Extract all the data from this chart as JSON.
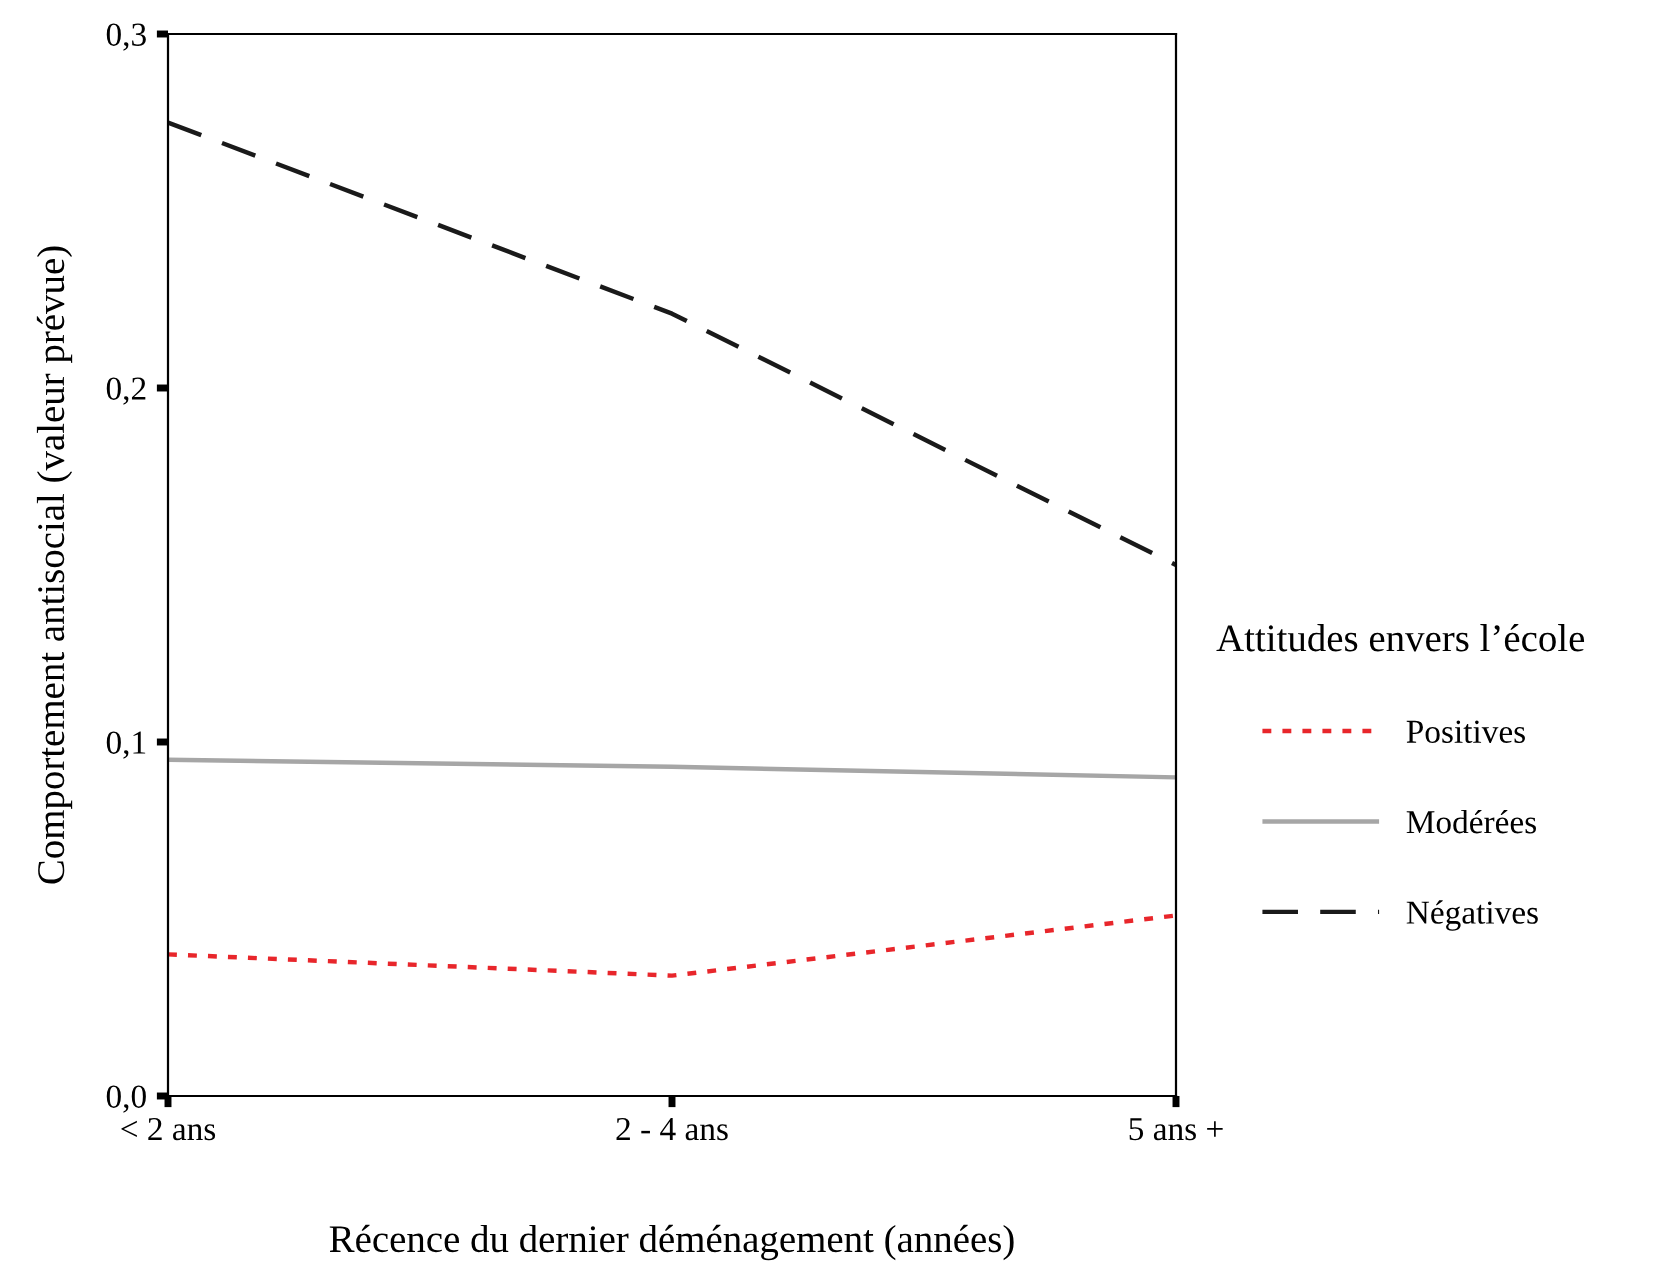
{
  "chart_data": {
    "type": "line",
    "xlabel": "Récence du dernier déménagement (années)",
    "ylabel": "Comportement antisocial (valeur prévue)",
    "legend_title": "Attitudes envers l’école",
    "categories": [
      "< 2 ans",
      "2 - 4 ans",
      "5 ans +"
    ],
    "series": [
      {
        "name": "Positives",
        "color": "#e8262b",
        "line_style": "dotted",
        "values": [
          0.04,
          0.034,
          0.051
        ]
      },
      {
        "name": "Modérées",
        "color": "#a6a6a6",
        "line_style": "solid",
        "values": [
          0.095,
          0.093,
          0.09
        ]
      },
      {
        "name": "Négatives",
        "color": "#1a1a1a",
        "line_style": "dashed",
        "values": [
          0.275,
          0.221,
          0.15
        ]
      }
    ],
    "ylim": [
      0,
      0.3
    ],
    "yticks": [
      {
        "value": 0,
        "label": "0,0"
      },
      {
        "value": 0.1,
        "label": "0,1"
      },
      {
        "value": 0.2,
        "label": "0,2"
      },
      {
        "value": 0.3,
        "label": "0,3"
      }
    ],
    "grid": false,
    "legend": "right",
    "marker": "none"
  }
}
